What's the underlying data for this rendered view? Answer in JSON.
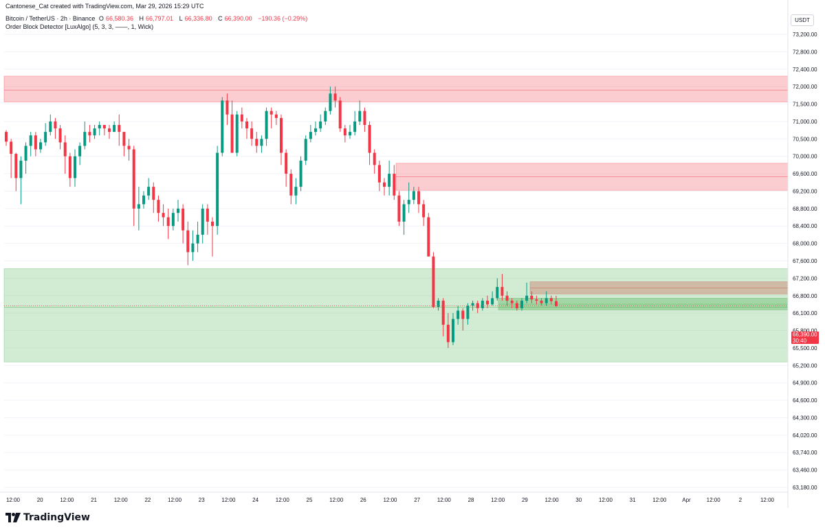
{
  "header": {
    "line1": "Cantonese_Cat created with TradingView.com, Mar 29, 2026 15:29 UTC",
    "symbol": "Bitcoin / TetherUS · 2h · Binance",
    "open_label": "O",
    "open": "66,580.36",
    "high_label": "H",
    "high": "66,797.01",
    "low_label": "L",
    "low": "66,336.80",
    "close_label": "C",
    "close": "66,390.00",
    "change": "−190.36 (−0.29%)",
    "indicator": "Order Block Detector [LuxAlgo] (5, 3, 3, ——, 1, Wick)"
  },
  "currency_label": "USDT",
  "last_price": {
    "value": "66,390.00",
    "countdown": "30:40"
  },
  "colors": {
    "up": "#089981",
    "down": "#f23645",
    "bear_zone": "#f23645",
    "bull_zone": "#4caf50",
    "grid": "#f0f3fa"
  },
  "logo_text": "TradingView",
  "chart_data": {
    "type": "candlestick",
    "title": "Bitcoin / TetherUS · 2h · Binance",
    "y_axis_ticks": [
      "73,200.00",
      "72,800.00",
      "72,400.00",
      "72,000.00",
      "71,500.00",
      "71,000.00",
      "70,500.00",
      "70,000.00",
      "69,600.00",
      "69,200.00",
      "68,800.00",
      "68,400.00",
      "68,000.00",
      "67,600.00",
      "67,200.00",
      "66,800.00",
      "66,100.00",
      "65,800.00",
      "65,500.00",
      "65,200.00",
      "64,900.00",
      "64,600.00",
      "64,300.00",
      "64,020.00",
      "63,740.00",
      "63,460.00",
      "63,180.00"
    ],
    "x_axis_ticks": [
      "12:00",
      "20",
      "12:00",
      "21",
      "12:00",
      "22",
      "12:00",
      "23",
      "12:00",
      "24",
      "12:00",
      "25",
      "12:00",
      "26",
      "12:00",
      "27",
      "12:00",
      "28",
      "12:00",
      "29",
      "12:00",
      "30",
      "12:00",
      "31",
      "12:00",
      "Apr",
      "12:00",
      "2",
      "12:00"
    ],
    "order_blocks": [
      {
        "type": "bearish",
        "top": 72240,
        "bottom": 71560,
        "mid": 71900
      },
      {
        "type": "bearish",
        "top": 69840,
        "bottom": 69220,
        "mid": 69530
      },
      {
        "type": "bearish",
        "top": 67120,
        "bottom": 66840,
        "mid": 66980
      },
      {
        "type": "bullish",
        "top": 67420,
        "bottom": 65260,
        "mid": 66340
      },
      {
        "type": "bullish",
        "top": 66700,
        "bottom": 66230,
        "mid": 66460
      }
    ],
    "candles": [
      [
        70700,
        70420,
        70750,
        70300
      ],
      [
        70420,
        70070,
        70500,
        69500
      ],
      [
        70070,
        69500,
        70100,
        69200
      ],
      [
        69500,
        69900,
        70000,
        68900
      ],
      [
        69900,
        70300,
        70400,
        69600
      ],
      [
        70300,
        70600,
        70700,
        70000
      ],
      [
        70600,
        70200,
        70700,
        70000
      ],
      [
        70200,
        70400,
        70500,
        70100
      ],
      [
        70400,
        70700,
        70950,
        70300
      ],
      [
        70700,
        71000,
        71200,
        70600
      ],
      [
        71000,
        70800,
        71100,
        70500
      ],
      [
        70800,
        70400,
        70900,
        70200
      ],
      [
        70400,
        70000,
        70600,
        69600
      ],
      [
        70000,
        69500,
        70100,
        69300
      ],
      [
        69500,
        70000,
        70200,
        69300
      ],
      [
        70000,
        70300,
        70400,
        69800
      ],
      [
        70300,
        70700,
        71000,
        70200
      ],
      [
        70700,
        70600,
        70900,
        70400
      ],
      [
        70600,
        70800,
        70900,
        70500
      ],
      [
        70800,
        70900,
        71000,
        70600
      ],
      [
        70900,
        70800,
        70900,
        70600
      ],
      [
        70800,
        70700,
        70900,
        70500
      ],
      [
        70700,
        70900,
        71000,
        70700
      ],
      [
        70900,
        70700,
        71200,
        70300
      ],
      [
        70700,
        70300,
        70700,
        70000
      ],
      [
        70300,
        70200,
        70500,
        69900
      ],
      [
        70200,
        68800,
        70300,
        68400
      ],
      [
        68800,
        68900,
        69300,
        68300
      ],
      [
        68900,
        69100,
        69200,
        68800
      ],
      [
        69100,
        69300,
        69500,
        69000
      ],
      [
        69300,
        69000,
        69400,
        68700
      ],
      [
        69000,
        68700,
        69100,
        68500
      ],
      [
        68700,
        68600,
        68900,
        68400
      ],
      [
        68600,
        68400,
        68800,
        68100
      ],
      [
        68400,
        68700,
        68800,
        68300
      ],
      [
        68700,
        68800,
        69000,
        68500
      ],
      [
        68800,
        68300,
        68900,
        68000
      ],
      [
        68300,
        67800,
        68500,
        67500
      ],
      [
        67800,
        68000,
        68300,
        67600
      ],
      [
        68000,
        68200,
        68500,
        67800
      ],
      [
        68200,
        68800,
        68900,
        68000
      ],
      [
        68800,
        68500,
        68900,
        68200
      ],
      [
        68500,
        68400,
        68600,
        67700
      ],
      [
        68400,
        70100,
        70300,
        68200
      ],
      [
        70100,
        71600,
        71700,
        70000
      ],
      [
        71600,
        71200,
        71800,
        70900
      ],
      [
        71200,
        70100,
        71600,
        70100
      ],
      [
        70100,
        71200,
        71300,
        70000
      ],
      [
        71200,
        71000,
        71400,
        70800
      ],
      [
        71000,
        70800,
        71100,
        70500
      ],
      [
        70800,
        70500,
        71000,
        70300
      ],
      [
        70500,
        70300,
        70700,
        70100
      ],
      [
        70300,
        70500,
        70600,
        70100
      ],
      [
        70500,
        71300,
        71400,
        70300
      ],
      [
        71300,
        71200,
        71400,
        70800
      ],
      [
        71200,
        71100,
        71300,
        70900
      ],
      [
        71100,
        70100,
        71200,
        69800
      ],
      [
        70100,
        69600,
        70200,
        69300
      ],
      [
        69600,
        69100,
        69700,
        68900
      ],
      [
        69100,
        69300,
        69500,
        68900
      ],
      [
        69300,
        69900,
        70000,
        69200
      ],
      [
        69900,
        70500,
        70600,
        69800
      ],
      [
        70500,
        70700,
        70900,
        70400
      ],
      [
        70700,
        70800,
        71000,
        70600
      ],
      [
        70800,
        71000,
        71200,
        70700
      ],
      [
        71000,
        71300,
        71400,
        70900
      ],
      [
        71300,
        71800,
        72000,
        71200
      ],
      [
        71800,
        71600,
        72000,
        71400
      ],
      [
        71600,
        70800,
        71700,
        70700
      ],
      [
        70800,
        70600,
        70900,
        70400
      ],
      [
        70600,
        70700,
        70900,
        70500
      ],
      [
        70700,
        71000,
        71300,
        70600
      ],
      [
        71000,
        71300,
        71600,
        70900
      ],
      [
        71300,
        70900,
        71400,
        70700
      ],
      [
        70900,
        70100,
        71000,
        69800
      ],
      [
        70100,
        69800,
        70200,
        69600
      ],
      [
        69800,
        69400,
        69900,
        69200
      ],
      [
        69400,
        69300,
        69500,
        69100
      ],
      [
        69300,
        69600,
        69900,
        69100
      ],
      [
        69600,
        69100,
        69800,
        69000
      ],
      [
        69100,
        68500,
        69200,
        68400
      ],
      [
        68500,
        68900,
        69000,
        68200
      ],
      [
        68900,
        69000,
        69400,
        68700
      ],
      [
        69000,
        69200,
        69300,
        68900
      ],
      [
        69200,
        68900,
        69300,
        68700
      ],
      [
        68900,
        68600,
        69000,
        68400
      ],
      [
        68600,
        67700,
        68700,
        67700
      ],
      [
        67700,
        66350,
        67800,
        66300
      ],
      [
        66350,
        66600,
        66700,
        66200
      ],
      [
        66600,
        65900,
        66700,
        65700
      ],
      [
        65900,
        65600,
        66100,
        65500
      ],
      [
        65600,
        66000,
        66100,
        65550
      ],
      [
        66000,
        66200,
        66400,
        65900
      ],
      [
        66200,
        66000,
        66300,
        65800
      ],
      [
        66000,
        66400,
        66500,
        65900
      ],
      [
        66400,
        66500,
        66600,
        66200
      ],
      [
        66500,
        66300,
        66600,
        66100
      ],
      [
        66300,
        66600,
        66700,
        66200
      ],
      [
        66600,
        66450,
        66800,
        66300
      ],
      [
        66450,
        66700,
        66900,
        66400
      ],
      [
        66700,
        67000,
        67200,
        66600
      ],
      [
        67000,
        66800,
        67300,
        66600
      ],
      [
        66800,
        66600,
        66900,
        66400
      ],
      [
        66600,
        66500,
        66700,
        66300
      ],
      [
        66500,
        66300,
        66600,
        66200
      ],
      [
        66300,
        66600,
        66700,
        66200
      ],
      [
        66600,
        66800,
        67100,
        66500
      ],
      [
        66800,
        66650,
        66900,
        66500
      ],
      [
        66650,
        66600,
        66800,
        66450
      ],
      [
        66600,
        66500,
        66700,
        66400
      ],
      [
        66500,
        66700,
        66900,
        66400
      ],
      [
        66700,
        66580,
        66800,
        66450
      ],
      [
        66580,
        66390,
        66797,
        66337
      ]
    ]
  }
}
